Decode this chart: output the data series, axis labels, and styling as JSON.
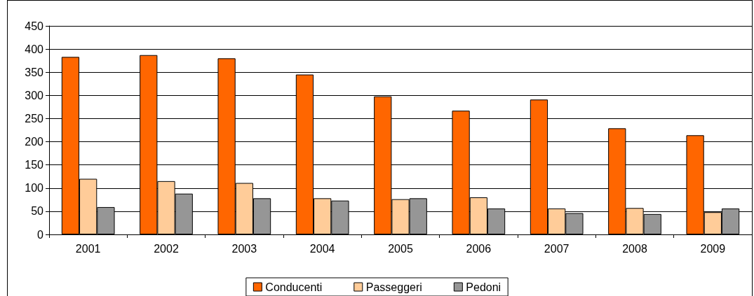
{
  "chart_data": {
    "type": "bar",
    "categories": [
      "2001",
      "2002",
      "2003",
      "2004",
      "2005",
      "2006",
      "2007",
      "2008",
      "2009"
    ],
    "series": [
      {
        "name": "Conducenti",
        "color": "#ff6600",
        "values": [
          383,
          387,
          380,
          345,
          298,
          267,
          291,
          229,
          214
        ]
      },
      {
        "name": "Passeggeri",
        "color": "#ffcc99",
        "values": [
          120,
          115,
          111,
          78,
          76,
          80,
          56,
          57,
          48
        ]
      },
      {
        "name": "Pedoni",
        "color": "#969696",
        "values": [
          59,
          88,
          78,
          73,
          78,
          56,
          46,
          44,
          56
        ]
      }
    ],
    "ylim": [
      0,
      450
    ],
    "yticks": [
      0,
      50,
      100,
      150,
      200,
      250,
      300,
      350,
      400,
      450
    ],
    "grid": "y",
    "legend": "bottom"
  }
}
